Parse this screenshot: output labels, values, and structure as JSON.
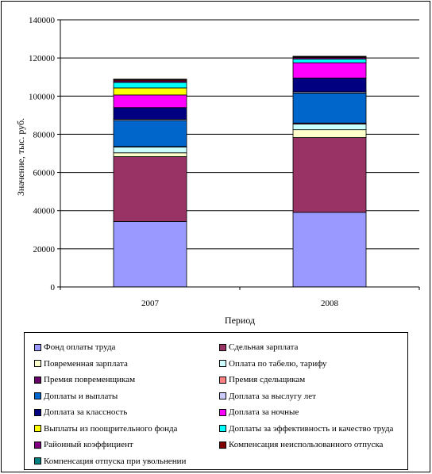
{
  "chart_data": {
    "type": "bar",
    "stacked": true,
    "categories": [
      "2007",
      "2008"
    ],
    "xlabel": "Период",
    "ylabel": "Значение, тыс. руб.",
    "ylim": [
      0,
      140000
    ],
    "yticks": [
      "0",
      "20000",
      "40000",
      "60000",
      "80000",
      "100000",
      "120000",
      "140000"
    ],
    "grid": true,
    "legend_position": "bottom",
    "series": [
      {
        "name": "Фонд оплаты труда",
        "color": "#9999ff",
        "values": [
          34300,
          39100
        ]
      },
      {
        "name": "Сдельная зарплата",
        "color": "#993366",
        "values": [
          34000,
          39200
        ]
      },
      {
        "name": "Повременная зарплата",
        "color": "#ffffcc",
        "values": [
          2000,
          4100
        ]
      },
      {
        "name": "Оплата по табелю, тарифу",
        "color": "#ccffff",
        "values": [
          3000,
          3000
        ]
      },
      {
        "name": "Премия повременщикам",
        "color": "#660066",
        "values": [
          300,
          500
        ]
      },
      {
        "name": "Премия сдельщикам",
        "color": "#ff8080",
        "values": [
          0,
          0
        ]
      },
      {
        "name": "Доплаты и выплаты",
        "color": "#0066cc",
        "values": [
          13600,
          15700
        ]
      },
      {
        "name": "Доплата за выслугу лет",
        "color": "#ccccff",
        "values": [
          600,
          600
        ]
      },
      {
        "name": "Доплата за классность",
        "color": "#000080",
        "values": [
          6200,
          7300
        ]
      },
      {
        "name": "Доплата за ночные",
        "color": "#ff00ff",
        "values": [
          6600,
          8000
        ]
      },
      {
        "name": "Выплаты из поощрительного фонда",
        "color": "#ffff00",
        "values": [
          3700,
          0
        ]
      },
      {
        "name": "Доплаты за эффективность и качество труда",
        "color": "#00ffff",
        "values": [
          2900,
          1900
        ]
      },
      {
        "name": "Районный коэффициент",
        "color": "#800080",
        "values": [
          800,
          800
        ]
      },
      {
        "name": "Компенсация неиспользованного отпуска",
        "color": "#800000",
        "values": [
          600,
          400
        ]
      },
      {
        "name": "Компенсация отпуска при увольнении",
        "color": "#008080",
        "values": [
          300,
          300
        ]
      }
    ]
  }
}
